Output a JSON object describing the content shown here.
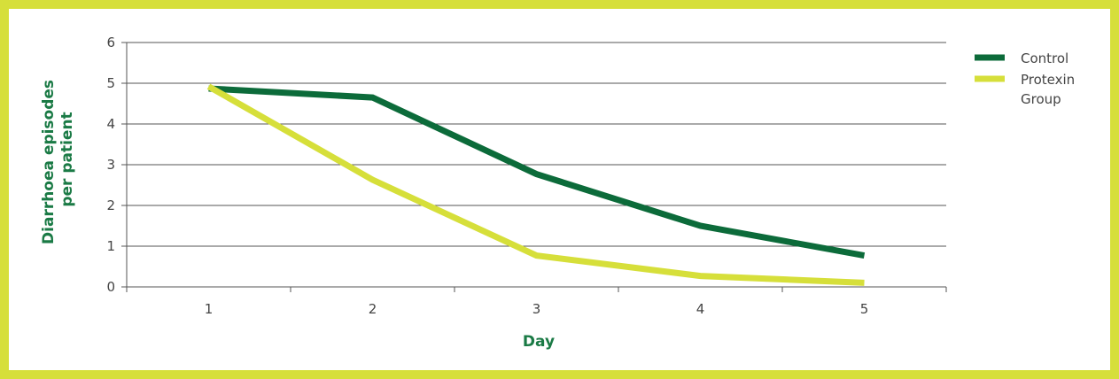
{
  "chart_data": {
    "type": "line",
    "title": "",
    "xlabel": "Day",
    "ylabel_lines": [
      "Diarrhoea episodes",
      "per patient"
    ],
    "categories": [
      "1",
      "2",
      "3",
      "4",
      "5"
    ],
    "ylim": [
      0,
      6
    ],
    "yticks": [
      "0",
      "1",
      "2",
      "3",
      "4",
      "5",
      "6"
    ],
    "grid": true,
    "legend_position": "right",
    "series": [
      {
        "name": "Control",
        "legend_lines": [
          "Control"
        ],
        "color": "#0c6b3a",
        "values": [
          4.87,
          4.65,
          2.77,
          1.5,
          0.77
        ]
      },
      {
        "name": "Protexin Group",
        "legend_lines": [
          "Protexin",
          "Group"
        ],
        "color": "#d6df3a",
        "values": [
          4.92,
          2.63,
          0.77,
          0.27,
          0.1
        ]
      }
    ]
  },
  "colors": {
    "frame_border": "#d6df3a",
    "axis_title": "#1a7a45",
    "gridline": "#555555"
  }
}
